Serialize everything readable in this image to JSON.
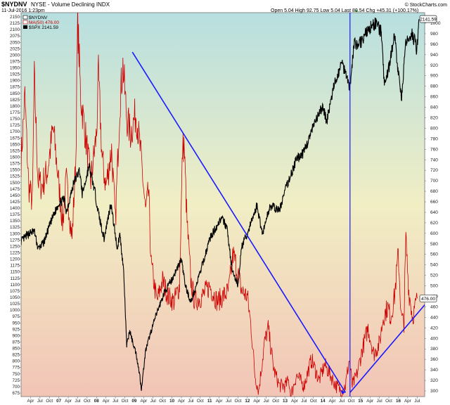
{
  "header": {
    "symbol": "$NYDNV",
    "exchange_desc": "NYSE - Volume Declining  INDX",
    "date": "11-Jul-2016 1:23pm",
    "ohlc": "Open 5.04  High 92.75  Low 5.04  Last 80.54  Chg +45.31 (+100.17%)",
    "ohlc_up_arrow": "▲",
    "watermark": "© StockCharts.com"
  },
  "legend": {
    "item1": "$NYDNV",
    "item2": "MA(50) 476.00",
    "item3": "$SPX 2141.59"
  },
  "chart_data": {
    "type": "line",
    "left_axis": {
      "label_series": "$SPX",
      "ylim": [
        675,
        2150
      ],
      "ticks": [
        "2150",
        "2125",
        "2100",
        "2075",
        "2050",
        "2025",
        "2000",
        "1975",
        "1950",
        "1925",
        "1900",
        "1875",
        "1850",
        "1825",
        "1800",
        "1775",
        "1750",
        "1725",
        "1700",
        "1675",
        "1650",
        "1625",
        "1600",
        "1575",
        "1550",
        "1525",
        "1500",
        "1475",
        "1450",
        "1425",
        "1400",
        "1375",
        "1350",
        "1325",
        "1300",
        "1275",
        "1250",
        "1225",
        "1200",
        "1175",
        "1150",
        "1125",
        "1100",
        "1075",
        "1050",
        "1025",
        "1000",
        "975",
        "950",
        "925",
        "900",
        "875",
        "850",
        "825",
        "800",
        "775",
        "750",
        "725",
        "700",
        "675"
      ]
    },
    "right_axis": {
      "label_series": "$NYDNV MA(50)",
      "ylim": [
        280,
        1020
      ],
      "ticks": [
        "1000",
        "980",
        "960",
        "940",
        "920",
        "900",
        "880",
        "860",
        "840",
        "820",
        "800",
        "780",
        "760",
        "740",
        "720",
        "700",
        "680",
        "660",
        "640",
        "620",
        "600",
        "580",
        "560",
        "540",
        "520",
        "500",
        "480",
        "460",
        "440",
        "420",
        "400",
        "380",
        "360",
        "340",
        "320",
        "300"
      ],
      "last_value_labels": [
        "2141.59",
        "476.00"
      ]
    },
    "x_axis": {
      "start": "2006-01",
      "end": "2016-08",
      "labels": [
        {
          "d": 2006.25,
          "t": "Apr"
        },
        {
          "d": 2006.5,
          "t": "Jul"
        },
        {
          "d": 2006.75,
          "t": "Oct"
        },
        {
          "d": 2007.0,
          "t": "07"
        },
        {
          "d": 2007.25,
          "t": "Apr"
        },
        {
          "d": 2007.5,
          "t": "Jul"
        },
        {
          "d": 2007.75,
          "t": "Oct"
        },
        {
          "d": 2008.0,
          "t": "08"
        },
        {
          "d": 2008.25,
          "t": "Apr"
        },
        {
          "d": 2008.5,
          "t": "Jul"
        },
        {
          "d": 2008.75,
          "t": "Oct"
        },
        {
          "d": 2009.0,
          "t": "09"
        },
        {
          "d": 2009.25,
          "t": "Apr"
        },
        {
          "d": 2009.5,
          "t": "Jul"
        },
        {
          "d": 2009.75,
          "t": "Oct"
        },
        {
          "d": 2010.0,
          "t": "10"
        },
        {
          "d": 2010.25,
          "t": "Apr"
        },
        {
          "d": 2010.5,
          "t": "Jul"
        },
        {
          "d": 2010.75,
          "t": "Oct"
        },
        {
          "d": 2011.0,
          "t": "11"
        },
        {
          "d": 2011.25,
          "t": "Apr"
        },
        {
          "d": 2011.5,
          "t": "Jul"
        },
        {
          "d": 2011.75,
          "t": "Oct"
        },
        {
          "d": 2012.0,
          "t": "12"
        },
        {
          "d": 2012.25,
          "t": "Apr"
        },
        {
          "d": 2012.5,
          "t": "Jul"
        },
        {
          "d": 2012.75,
          "t": "Oct"
        },
        {
          "d": 2013.0,
          "t": "13"
        },
        {
          "d": 2013.25,
          "t": "Apr"
        },
        {
          "d": 2013.5,
          "t": "Jul"
        },
        {
          "d": 2013.75,
          "t": "Oct"
        },
        {
          "d": 2014.0,
          "t": "14"
        },
        {
          "d": 2014.25,
          "t": "Apr"
        },
        {
          "d": 2014.5,
          "t": "Jul"
        },
        {
          "d": 2014.75,
          "t": "Oct"
        },
        {
          "d": 2015.0,
          "t": "15"
        },
        {
          "d": 2015.25,
          "t": "Apr"
        },
        {
          "d": 2015.5,
          "t": "Jul"
        },
        {
          "d": 2015.75,
          "t": "Oct"
        },
        {
          "d": 2016.0,
          "t": "16"
        },
        {
          "d": 2016.25,
          "t": "Apr"
        },
        {
          "d": 2016.5,
          "t": "Jul"
        }
      ]
    },
    "series": [
      {
        "name": "$SPX",
        "axis": "left",
        "color": "#000000",
        "points": [
          [
            2006.0,
            1270
          ],
          [
            2006.2,
            1300
          ],
          [
            2006.35,
            1310
          ],
          [
            2006.45,
            1240
          ],
          [
            2006.6,
            1265
          ],
          [
            2006.8,
            1350
          ],
          [
            2007.0,
            1420
          ],
          [
            2007.15,
            1435
          ],
          [
            2007.2,
            1385
          ],
          [
            2007.4,
            1500
          ],
          [
            2007.55,
            1550
          ],
          [
            2007.62,
            1455
          ],
          [
            2007.7,
            1500
          ],
          [
            2007.8,
            1565
          ],
          [
            2007.95,
            1470
          ],
          [
            2008.05,
            1380
          ],
          [
            2008.2,
            1280
          ],
          [
            2008.38,
            1420
          ],
          [
            2008.55,
            1240
          ],
          [
            2008.62,
            1300
          ],
          [
            2008.72,
            1150
          ],
          [
            2008.8,
            860
          ],
          [
            2008.88,
            920
          ],
          [
            2008.95,
            880
          ],
          [
            2009.05,
            830
          ],
          [
            2009.15,
            740
          ],
          [
            2009.19,
            690
          ],
          [
            2009.3,
            840
          ],
          [
            2009.45,
            920
          ],
          [
            2009.6,
            990
          ],
          [
            2009.8,
            1070
          ],
          [
            2010.0,
            1120
          ],
          [
            2010.25,
            1200
          ],
          [
            2010.35,
            1100
          ],
          [
            2010.5,
            1030
          ],
          [
            2010.65,
            1100
          ],
          [
            2010.85,
            1200
          ],
          [
            2011.0,
            1280
          ],
          [
            2011.3,
            1360
          ],
          [
            2011.45,
            1330
          ],
          [
            2011.6,
            1150
          ],
          [
            2011.75,
            1100
          ],
          [
            2011.85,
            1250
          ],
          [
            2012.0,
            1300
          ],
          [
            2012.25,
            1410
          ],
          [
            2012.4,
            1300
          ],
          [
            2012.6,
            1410
          ],
          [
            2012.85,
            1390
          ],
          [
            2013.0,
            1470
          ],
          [
            2013.3,
            1590
          ],
          [
            2013.5,
            1620
          ],
          [
            2013.75,
            1720
          ],
          [
            2014.0,
            1800
          ],
          [
            2014.1,
            1740
          ],
          [
            2014.3,
            1880
          ],
          [
            2014.5,
            1970
          ],
          [
            2014.62,
            1930
          ],
          [
            2014.72,
            1870
          ],
          [
            2014.82,
            2040
          ],
          [
            2015.0,
            2050
          ],
          [
            2015.2,
            2100
          ],
          [
            2015.4,
            2125
          ],
          [
            2015.55,
            2090
          ],
          [
            2015.63,
            1880
          ],
          [
            2015.75,
            1950
          ],
          [
            2015.9,
            2080
          ],
          [
            2016.0,
            1930
          ],
          [
            2016.08,
            1830
          ],
          [
            2016.2,
            2040
          ],
          [
            2016.35,
            2090
          ],
          [
            2016.45,
            2050
          ],
          [
            2016.48,
            2000
          ],
          [
            2016.55,
            2141
          ]
        ]
      },
      {
        "name": "MA(50)",
        "axis": "right",
        "color": "#cc0000",
        "points": [
          [
            2006.0,
            740
          ],
          [
            2006.1,
            860
          ],
          [
            2006.2,
            690
          ],
          [
            2006.3,
            660
          ],
          [
            2006.35,
            895
          ],
          [
            2006.45,
            700
          ],
          [
            2006.55,
            690
          ],
          [
            2006.7,
            720
          ],
          [
            2006.85,
            800
          ],
          [
            2006.95,
            730
          ],
          [
            2007.1,
            620
          ],
          [
            2007.2,
            700
          ],
          [
            2007.35,
            590
          ],
          [
            2007.45,
            740
          ],
          [
            2007.5,
            1005
          ],
          [
            2007.58,
            860
          ],
          [
            2007.7,
            790
          ],
          [
            2007.85,
            700
          ],
          [
            2008.0,
            790
          ],
          [
            2008.05,
            900
          ],
          [
            2008.15,
            740
          ],
          [
            2008.25,
            690
          ],
          [
            2008.4,
            760
          ],
          [
            2008.5,
            620
          ],
          [
            2008.62,
            850
          ],
          [
            2008.7,
            920
          ],
          [
            2008.8,
            820
          ],
          [
            2008.9,
            790
          ],
          [
            2009.05,
            830
          ],
          [
            2009.2,
            730
          ],
          [
            2009.3,
            640
          ],
          [
            2009.38,
            680
          ],
          [
            2009.45,
            540
          ],
          [
            2009.6,
            470
          ],
          [
            2009.75,
            510
          ],
          [
            2009.9,
            480
          ],
          [
            2010.05,
            470
          ],
          [
            2010.2,
            500
          ],
          [
            2010.28,
            760
          ],
          [
            2010.32,
            770
          ],
          [
            2010.4,
            620
          ],
          [
            2010.5,
            510
          ],
          [
            2010.6,
            470
          ],
          [
            2010.8,
            480
          ],
          [
            2011.0,
            500
          ],
          [
            2011.2,
            470
          ],
          [
            2011.5,
            490
          ],
          [
            2011.62,
            560
          ],
          [
            2011.7,
            540
          ],
          [
            2011.85,
            490
          ],
          [
            2012.0,
            480
          ],
          [
            2012.1,
            420
          ],
          [
            2012.2,
            330
          ],
          [
            2012.3,
            300
          ],
          [
            2012.45,
            390
          ],
          [
            2012.55,
            420
          ],
          [
            2012.7,
            340
          ],
          [
            2012.85,
            310
          ],
          [
            2013.0,
            310
          ],
          [
            2013.1,
            320
          ],
          [
            2013.15,
            290
          ],
          [
            2013.3,
            330
          ],
          [
            2013.5,
            310
          ],
          [
            2013.7,
            360
          ],
          [
            2013.9,
            320
          ],
          [
            2014.05,
            350
          ],
          [
            2014.2,
            330
          ],
          [
            2014.35,
            310
          ],
          [
            2014.5,
            300
          ],
          [
            2014.6,
            310
          ],
          [
            2014.7,
            360
          ],
          [
            2014.78,
            310
          ],
          [
            2014.9,
            330
          ],
          [
            2015.05,
            380
          ],
          [
            2015.2,
            420
          ],
          [
            2015.35,
            370
          ],
          [
            2015.5,
            390
          ],
          [
            2015.6,
            440
          ],
          [
            2015.72,
            460
          ],
          [
            2015.8,
            440
          ],
          [
            2015.9,
            480
          ],
          [
            2016.0,
            560
          ],
          [
            2016.08,
            440
          ],
          [
            2016.15,
            430
          ],
          [
            2016.2,
            590
          ],
          [
            2016.28,
            490
          ],
          [
            2016.38,
            440
          ],
          [
            2016.5,
            476
          ]
        ]
      }
    ],
    "trendlines": [
      {
        "from": [
          2008.95,
          945
        ],
        "to": [
          2014.6,
          297
        ]
      },
      {
        "from": [
          2014.72,
          297
        ],
        "to": [
          2016.75,
          468
        ]
      }
    ],
    "vertical_line": {
      "x": 2014.72
    }
  }
}
